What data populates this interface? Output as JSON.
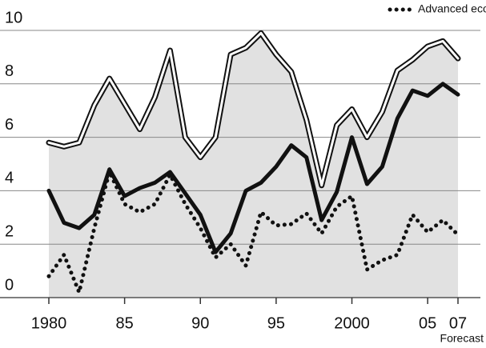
{
  "chart_data": {
    "type": "line",
    "x": [
      1980,
      1981,
      1982,
      1983,
      1984,
      1985,
      1986,
      1987,
      1988,
      1989,
      1990,
      1991,
      1992,
      1993,
      1994,
      1995,
      1996,
      1997,
      1998,
      1999,
      2000,
      2001,
      2002,
      2003,
      2004,
      2005,
      2006,
      2007
    ],
    "series": [
      {
        "color": "#ffffff",
        "area_color": "#e1e1e1",
        "values": [
          5.8,
          5.65,
          5.8,
          7.2,
          8.2,
          7.25,
          6.3,
          7.5,
          9.25,
          6.0,
          5.25,
          6.0,
          9.1,
          9.35,
          9.9,
          9.1,
          8.45,
          6.65,
          4.2,
          6.45,
          7.05,
          6.0,
          6.95,
          8.5,
          8.9,
          9.4,
          9.6,
          8.95
        ]
      },
      {
        "color": "#111111",
        "values": [
          4.0,
          2.8,
          2.6,
          3.1,
          4.8,
          3.8,
          4.1,
          4.3,
          4.7,
          3.9,
          3.1,
          1.7,
          2.4,
          4.0,
          4.3,
          4.9,
          5.7,
          5.25,
          2.9,
          3.95,
          6.0,
          4.25,
          4.9,
          6.7,
          7.75,
          7.55,
          8.0,
          7.6
        ]
      },
      {
        "name": "Advanced economies",
        "color": "#111111",
        "dotted": true,
        "values": [
          0.8,
          1.6,
          0.2,
          2.6,
          4.7,
          3.5,
          3.2,
          3.5,
          4.6,
          3.5,
          2.6,
          1.5,
          2.0,
          1.2,
          3.2,
          2.7,
          2.75,
          3.15,
          2.4,
          3.4,
          3.8,
          1.05,
          1.4,
          1.6,
          3.1,
          2.45,
          2.9,
          2.35
        ]
      }
    ],
    "xlim": [
      1980,
      2007
    ],
    "xticks": [
      1980,
      {
        "value": 1985,
        "label": "85"
      },
      {
        "value": 1990,
        "label": "90"
      },
      {
        "value": 1995,
        "label": "95"
      },
      2000,
      {
        "value": 2005,
        "label": "05"
      },
      {
        "value": 2007,
        "label": "07"
      }
    ],
    "ylim": [
      0,
      10
    ],
    "yticks": [
      0,
      2,
      4,
      6,
      8,
      10
    ],
    "grid": true,
    "legend": "top-right",
    "annotation": "Forecast"
  }
}
